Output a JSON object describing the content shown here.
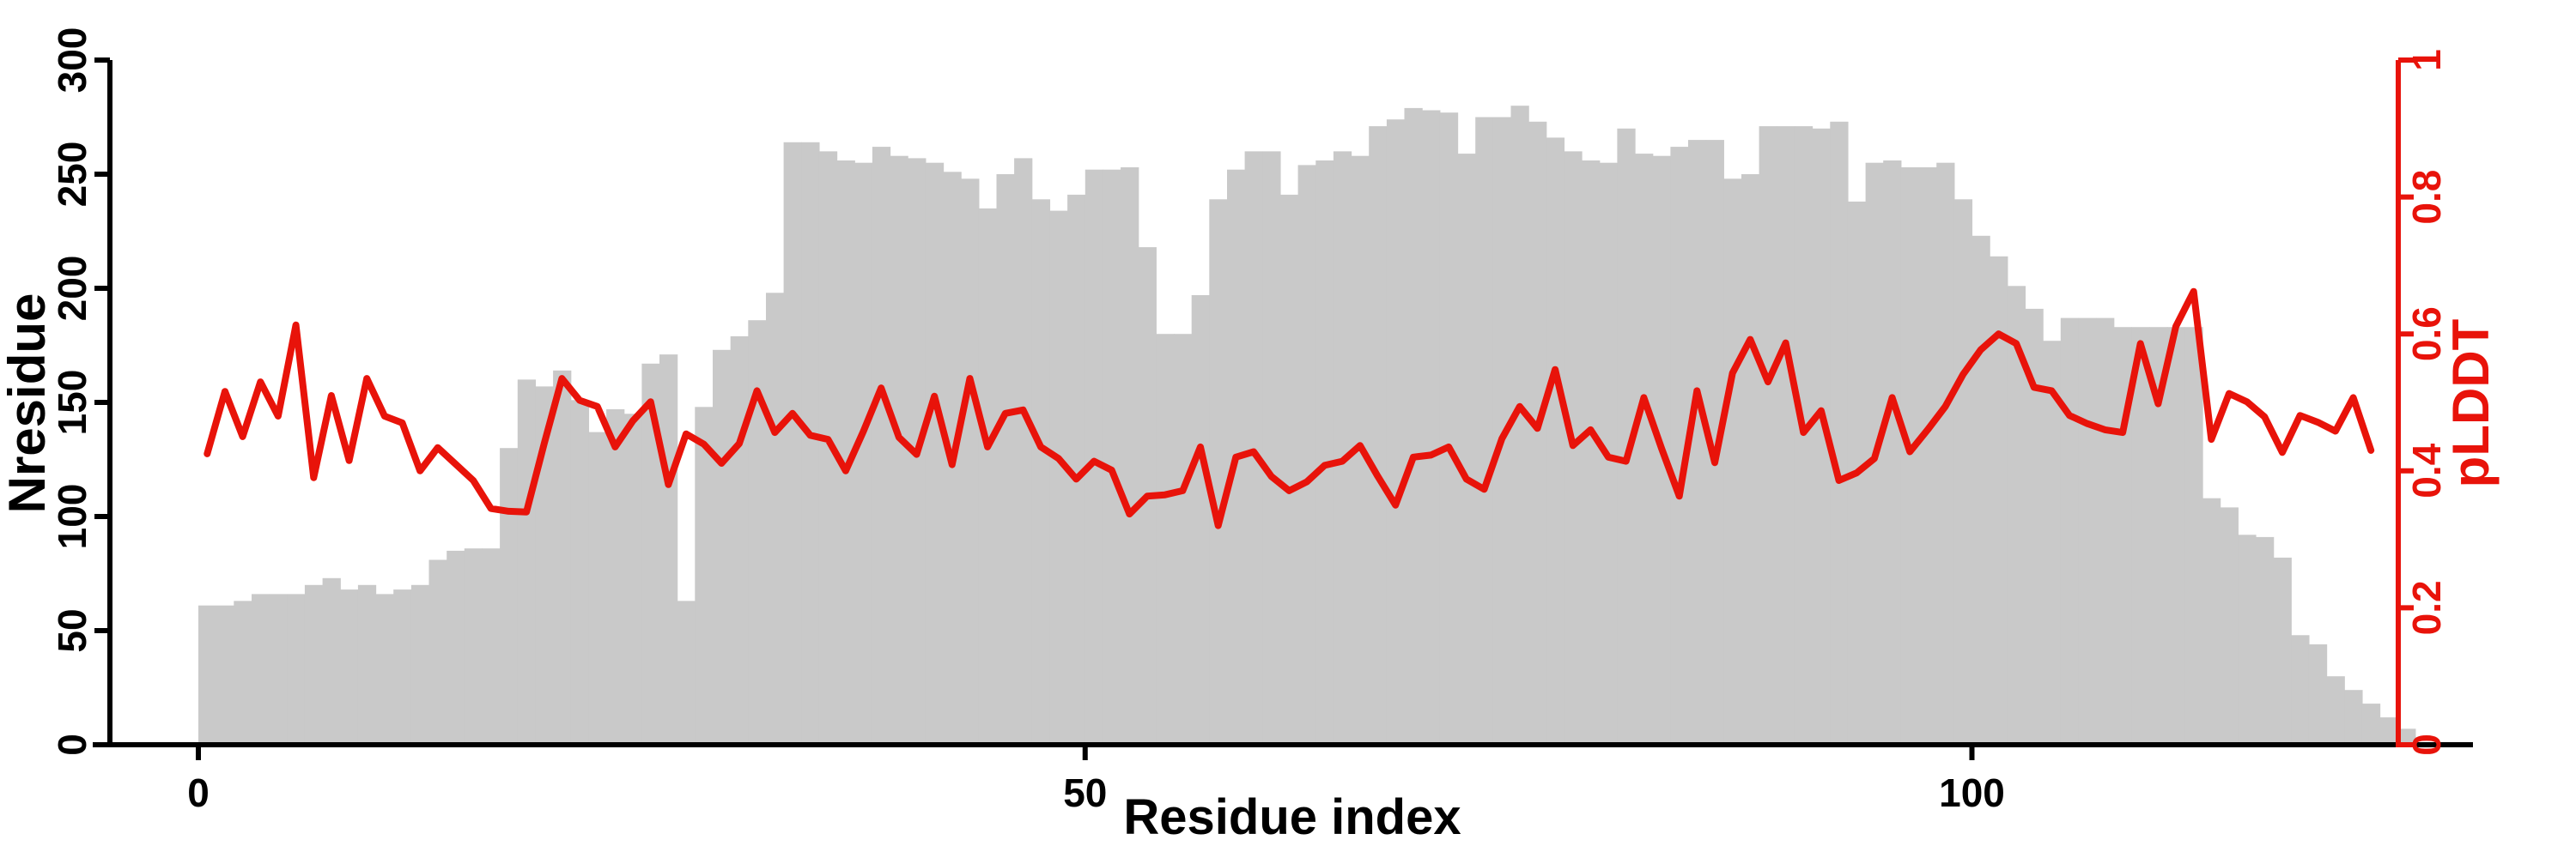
{
  "chart_data": {
    "type": "bar+line-dual-axis",
    "title": "",
    "xlabel": "Residue index",
    "ylabel_left": "Nresidue",
    "ylabel_right": "pLDDT",
    "x_ticks": [
      0,
      50,
      100
    ],
    "y_ticks_left": [
      0,
      50,
      100,
      150,
      200,
      250,
      300
    ],
    "y_ticks_right": [
      "0",
      "0.2",
      "0.4",
      "0.6",
      "0.8",
      "1"
    ],
    "y_ticks_right_values": [
      0,
      0.2,
      0.4,
      0.6,
      0.8,
      1
    ],
    "xlim": [
      0,
      125
    ],
    "ylim_left": [
      0,
      300
    ],
    "ylim_right": [
      0,
      1
    ],
    "grid": false,
    "legend": "none",
    "bar_color": "#c9c9c9",
    "line_color": "#e8130a",
    "axis_color_left": "#000000",
    "axis_color_right": "#e8130a",
    "bar_series_name": "Nresidue",
    "line_series_name": "pLDDT",
    "bar_x_start_index": 0,
    "bar_values": [
      61,
      61,
      63,
      66,
      66,
      66,
      70,
      73,
      68,
      70,
      66,
      68,
      70,
      81,
      85,
      86,
      86,
      130,
      160,
      157,
      164,
      151,
      137,
      147,
      145,
      167,
      171,
      63,
      148,
      173,
      179,
      186,
      198,
      264,
      264,
      260,
      256,
      255,
      262,
      258,
      257,
      255,
      251,
      248,
      235,
      250,
      257,
      239,
      234,
      241,
      252,
      252,
      253,
      218,
      180,
      180,
      197,
      239,
      252,
      260,
      260,
      241,
      254,
      256,
      260,
      258,
      271,
      274,
      279,
      278,
      277,
      259,
      275,
      275,
      280,
      273,
      266,
      260,
      256,
      255,
      270,
      259,
      258,
      262,
      265,
      265,
      248,
      250,
      271,
      271,
      271,
      270,
      273,
      238,
      255,
      256,
      253,
      253,
      255,
      239,
      223,
      214,
      201,
      191,
      177,
      187,
      187,
      187,
      183,
      183,
      183,
      183,
      183,
      108,
      104,
      92,
      91,
      82,
      48,
      44,
      30,
      24,
      18,
      12,
      7
    ],
    "line_x_start_index": 0,
    "line_values": [
      0.425,
      0.516,
      0.45,
      0.53,
      0.48,
      0.613,
      0.39,
      0.51,
      0.415,
      0.535,
      0.48,
      0.47,
      0.4,
      0.434,
      0.41,
      0.386,
      0.345,
      0.341,
      0.34,
      0.44,
      0.535,
      0.503,
      0.494,
      0.435,
      0.473,
      0.501,
      0.38,
      0.454,
      0.439,
      0.411,
      0.44,
      0.517,
      0.456,
      0.484,
      0.452,
      0.446,
      0.4,
      0.458,
      0.521,
      0.449,
      0.424,
      0.509,
      0.409,
      0.535,
      0.435,
      0.484,
      0.489,
      0.435,
      0.418,
      0.388,
      0.414,
      0.401,
      0.337,
      0.363,
      0.365,
      0.371,
      0.435,
      0.32,
      0.42,
      0.428,
      0.392,
      0.371,
      0.384,
      0.408,
      0.414,
      0.437,
      0.392,
      0.35,
      0.42,
      0.423,
      0.435,
      0.388,
      0.373,
      0.447,
      0.494,
      0.462,
      0.548,
      0.437,
      0.46,
      0.42,
      0.414,
      0.507,
      0.433,
      0.363,
      0.517,
      0.412,
      0.543,
      0.592,
      0.53,
      0.587,
      0.456,
      0.488,
      0.386,
      0.397,
      0.418,
      0.507,
      0.428,
      0.46,
      0.494,
      0.541,
      0.577,
      0.6,
      0.586,
      0.522,
      0.517,
      0.481,
      0.469,
      0.46,
      0.456,
      0.586,
      0.498,
      0.611,
      0.662,
      0.446,
      0.513,
      0.501,
      0.479,
      0.427,
      0.481,
      0.471,
      0.458,
      0.507,
      0.43
    ]
  }
}
